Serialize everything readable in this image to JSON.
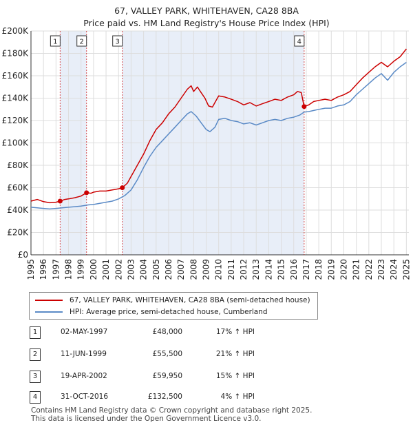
{
  "header": {
    "title": "67, VALLEY PARK, WHITEHAVEN, CA28 8BA",
    "subtitle": "Price paid vs. HM Land Registry's House Price Index (HPI)"
  },
  "chart_data": {
    "type": "line",
    "title": "67, VALLEY PARK, WHITEHAVEN, CA28 8BA",
    "subtitle": "Price paid vs. HM Land Registry's House Price Index (HPI)",
    "xlabel": "",
    "ylabel": "",
    "xlim": [
      1995,
      2025.2
    ],
    "ylim": [
      0,
      200000
    ],
    "y_ticks": [
      0,
      20000,
      40000,
      60000,
      80000,
      100000,
      120000,
      140000,
      160000,
      180000,
      200000
    ],
    "y_tick_labels": [
      "£0",
      "£20K",
      "£40K",
      "£60K",
      "£80K",
      "£100K",
      "£120K",
      "£140K",
      "£160K",
      "£180K",
      "£200K"
    ],
    "x_ticks": [
      1995,
      1996,
      1997,
      1998,
      1999,
      2000,
      2001,
      2002,
      2003,
      2004,
      2005,
      2006,
      2007,
      2008,
      2009,
      2010,
      2011,
      2012,
      2013,
      2014,
      2015,
      2016,
      2017,
      2018,
      2019,
      2020,
      2021,
      2022,
      2023,
      2024,
      2025
    ],
    "x_tick_labels": [
      "1995",
      "1996",
      "1997",
      "1998",
      "1999",
      "2000",
      "2001",
      "2002",
      "2003",
      "2004",
      "2005",
      "2006",
      "2007",
      "2008",
      "2009",
      "2010",
      "2011",
      "2012",
      "2013",
      "2014",
      "2015",
      "2016",
      "2017",
      "2018",
      "2019",
      "2020",
      "2021",
      "2022",
      "2023",
      "2024",
      "2025"
    ],
    "grid": true,
    "series": [
      {
        "name": "67, VALLEY PARK, WHITEHAVEN, CA28 8BA (semi-detached house)",
        "color": "#cc0000",
        "points": [
          [
            1995.0,
            48000
          ],
          [
            1995.5,
            49500
          ],
          [
            1996.0,
            47500
          ],
          [
            1996.5,
            46500
          ],
          [
            1997.0,
            47000
          ],
          [
            1997.33,
            48000
          ],
          [
            1997.7,
            49500
          ],
          [
            1998.0,
            50000
          ],
          [
            1998.5,
            51000
          ],
          [
            1999.0,
            52500
          ],
          [
            1999.44,
            55500
          ],
          [
            1999.8,
            55000
          ],
          [
            2000.0,
            56000
          ],
          [
            2000.5,
            57000
          ],
          [
            2001.0,
            57000
          ],
          [
            2001.5,
            58000
          ],
          [
            2002.0,
            59000
          ],
          [
            2002.3,
            59950
          ],
          [
            2002.7,
            64000
          ],
          [
            2003.0,
            70000
          ],
          [
            2003.5,
            80000
          ],
          [
            2004.0,
            90000
          ],
          [
            2004.5,
            102000
          ],
          [
            2005.0,
            112000
          ],
          [
            2005.5,
            118000
          ],
          [
            2006.0,
            126000
          ],
          [
            2006.5,
            132000
          ],
          [
            2007.0,
            140000
          ],
          [
            2007.5,
            148000
          ],
          [
            2007.8,
            151000
          ],
          [
            2008.0,
            146000
          ],
          [
            2008.3,
            150000
          ],
          [
            2008.6,
            145000
          ],
          [
            2008.9,
            140000
          ],
          [
            2009.2,
            133000
          ],
          [
            2009.5,
            132000
          ],
          [
            2009.8,
            138000
          ],
          [
            2010.0,
            142000
          ],
          [
            2010.5,
            141000
          ],
          [
            2011.0,
            139000
          ],
          [
            2011.5,
            137000
          ],
          [
            2012.0,
            134000
          ],
          [
            2012.5,
            136000
          ],
          [
            2013.0,
            133000
          ],
          [
            2013.5,
            135000
          ],
          [
            2014.0,
            137000
          ],
          [
            2014.5,
            139000
          ],
          [
            2015.0,
            138000
          ],
          [
            2015.5,
            141000
          ],
          [
            2016.0,
            143000
          ],
          [
            2016.3,
            146000
          ],
          [
            2016.6,
            145000
          ],
          [
            2016.83,
            132500
          ],
          [
            2017.2,
            134000
          ],
          [
            2017.6,
            137000
          ],
          [
            2018.0,
            138000
          ],
          [
            2018.5,
            139000
          ],
          [
            2019.0,
            138000
          ],
          [
            2019.5,
            141000
          ],
          [
            2020.0,
            143000
          ],
          [
            2020.5,
            146000
          ],
          [
            2021.0,
            152000
          ],
          [
            2021.5,
            158000
          ],
          [
            2022.0,
            163000
          ],
          [
            2022.5,
            168000
          ],
          [
            2023.0,
            172000
          ],
          [
            2023.5,
            168000
          ],
          [
            2024.0,
            173000
          ],
          [
            2024.5,
            177000
          ],
          [
            2025.0,
            184000
          ]
        ]
      },
      {
        "name": "HPI: Average price, semi-detached house, Cumberland",
        "color": "#5a8ac6",
        "points": [
          [
            1995.0,
            42500
          ],
          [
            1995.5,
            42000
          ],
          [
            1996.0,
            41500
          ],
          [
            1996.5,
            41000
          ],
          [
            1997.0,
            41500
          ],
          [
            1997.5,
            42000
          ],
          [
            1998.0,
            42500
          ],
          [
            1998.5,
            43000
          ],
          [
            1999.0,
            43500
          ],
          [
            1999.5,
            44500
          ],
          [
            2000.0,
            45000
          ],
          [
            2000.5,
            46000
          ],
          [
            2001.0,
            47000
          ],
          [
            2001.5,
            48000
          ],
          [
            2002.0,
            50000
          ],
          [
            2002.5,
            53000
          ],
          [
            2003.0,
            58000
          ],
          [
            2003.5,
            67000
          ],
          [
            2004.0,
            78000
          ],
          [
            2004.5,
            88000
          ],
          [
            2005.0,
            96000
          ],
          [
            2005.5,
            102000
          ],
          [
            2006.0,
            108000
          ],
          [
            2006.5,
            114000
          ],
          [
            2007.0,
            120000
          ],
          [
            2007.5,
            126000
          ],
          [
            2007.8,
            128000
          ],
          [
            2008.2,
            124000
          ],
          [
            2008.6,
            118000
          ],
          [
            2009.0,
            112000
          ],
          [
            2009.3,
            110000
          ],
          [
            2009.7,
            114000
          ],
          [
            2010.0,
            121000
          ],
          [
            2010.5,
            122000
          ],
          [
            2011.0,
            120000
          ],
          [
            2011.5,
            119000
          ],
          [
            2012.0,
            117000
          ],
          [
            2012.5,
            118000
          ],
          [
            2013.0,
            116000
          ],
          [
            2013.5,
            118000
          ],
          [
            2014.0,
            120000
          ],
          [
            2014.5,
            121000
          ],
          [
            2015.0,
            120000
          ],
          [
            2015.5,
            122000
          ],
          [
            2016.0,
            123000
          ],
          [
            2016.5,
            125000
          ],
          [
            2016.83,
            127500
          ],
          [
            2017.2,
            128000
          ],
          [
            2017.6,
            129000
          ],
          [
            2018.0,
            130000
          ],
          [
            2018.5,
            131000
          ],
          [
            2019.0,
            131000
          ],
          [
            2019.5,
            133000
          ],
          [
            2020.0,
            134000
          ],
          [
            2020.5,
            137000
          ],
          [
            2021.0,
            143000
          ],
          [
            2021.5,
            148000
          ],
          [
            2022.0,
            153000
          ],
          [
            2022.5,
            158000
          ],
          [
            2023.0,
            162000
          ],
          [
            2023.5,
            156000
          ],
          [
            2024.0,
            163000
          ],
          [
            2024.5,
            168000
          ],
          [
            2025.0,
            172000
          ]
        ]
      }
    ],
    "transactions": [
      {
        "marker": "1",
        "x": 1997.33,
        "price": 48000,
        "date": "02-MAY-1997",
        "price_label": "£48,000",
        "hpi_label": "17% ↑ HPI"
      },
      {
        "marker": "2",
        "x": 1999.44,
        "price": 55500,
        "date": "11-JUN-1999",
        "price_label": "£55,500",
        "hpi_label": "21% ↑ HPI"
      },
      {
        "marker": "3",
        "x": 2002.3,
        "price": 59950,
        "date": "19-APR-2002",
        "price_label": "£59,950",
        "hpi_label": "15% ↑ HPI"
      },
      {
        "marker": "4",
        "x": 2016.83,
        "price": 132500,
        "date": "31-OCT-2016",
        "price_label": "£132,500",
        "hpi_label": "4% ↑ HPI"
      }
    ],
    "colors": {
      "price_line": "#cc0000",
      "hpi_line": "#5a8ac6",
      "band_fill": "#e8eef8",
      "grid": "#dddddd",
      "marker_line": "#cc0000"
    }
  },
  "legend": {
    "items": [
      {
        "label": "67, VALLEY PARK, WHITEHAVEN, CA28 8BA (semi-detached house)",
        "color": "#cc0000"
      },
      {
        "label": "HPI: Average price, semi-detached house, Cumberland",
        "color": "#5a8ac6"
      }
    ]
  },
  "transactions_table": [
    {
      "num": "1",
      "date": "02-MAY-1997",
      "price": "£48,000",
      "hpi": "17% ↑ HPI"
    },
    {
      "num": "2",
      "date": "11-JUN-1999",
      "price": "£55,500",
      "hpi": "21% ↑ HPI"
    },
    {
      "num": "3",
      "date": "19-APR-2002",
      "price": "£59,950",
      "hpi": "15% ↑ HPI"
    },
    {
      "num": "4",
      "date": "31-OCT-2016",
      "price": "£132,500",
      "hpi": "4% ↑ HPI"
    }
  ],
  "footer": {
    "line1": "Contains HM Land Registry data © Crown copyright and database right 2025.",
    "line2": "This data is licensed under the Open Government Licence v3.0."
  }
}
